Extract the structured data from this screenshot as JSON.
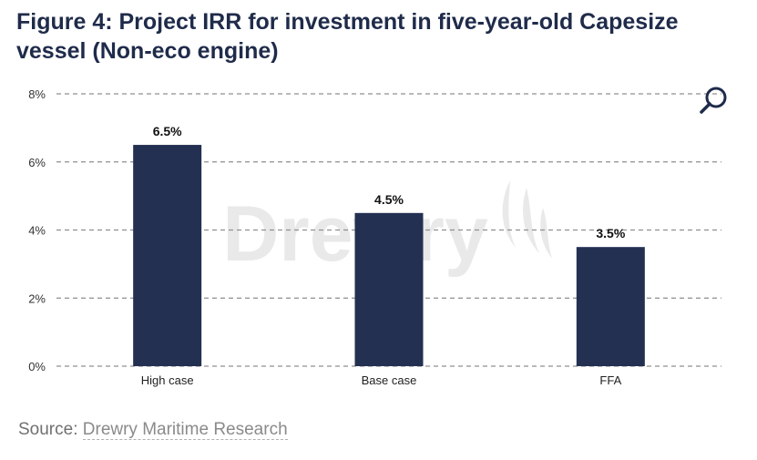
{
  "title_line1": "Figure 4: Project IRR for investment in five-year-old Capesize",
  "title_line2": "vessel (Non-eco engine)",
  "watermark": "Drewry",
  "source_label": "Source:",
  "source_link": "Drewry Maritime Research",
  "search_icon": "magnifier-icon",
  "colors": {
    "bar": "#243052",
    "grid": "#8f8f8f",
    "title": "#1f2b4a",
    "watermark": "#e9e9e9"
  },
  "chart_data": {
    "type": "bar",
    "categories": [
      "High case",
      "Base case",
      "FFA"
    ],
    "values": [
      6.5,
      4.5,
      3.5
    ],
    "data_labels": [
      "6.5%",
      "4.5%",
      "3.5%"
    ],
    "yticks": [
      0,
      2,
      4,
      6,
      8
    ],
    "ytick_labels": [
      "0%",
      "2%",
      "4%",
      "6%",
      "8%"
    ],
    "ylim": [
      0,
      8
    ],
    "grid": true,
    "legend": "none"
  }
}
